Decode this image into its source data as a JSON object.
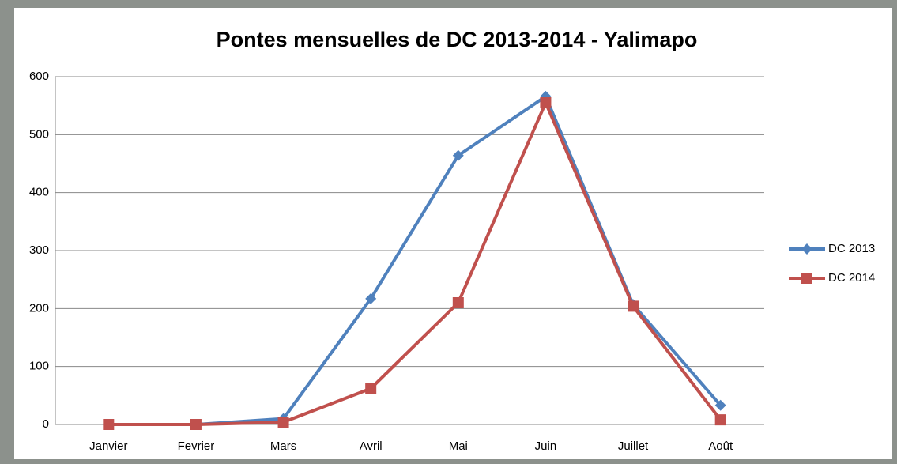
{
  "chart_data": {
    "type": "line",
    "title": "Pontes mensuelles de DC 2013-2014 - Yalimapo",
    "categories": [
      "Janvier",
      "Fevrier",
      "Mars",
      "Avril",
      "Mai",
      "Juin",
      "Juillet",
      "Août"
    ],
    "series": [
      {
        "name": "DC 2013",
        "color": "#4f81bd",
        "marker": "diamond",
        "values": [
          0,
          0,
          10,
          217,
          464,
          566,
          207,
          33
        ]
      },
      {
        "name": "DC 2014",
        "color": "#c0504d",
        "marker": "square",
        "values": [
          0,
          0,
          4,
          62,
          210,
          555,
          204,
          8
        ]
      }
    ],
    "ylim": [
      0,
      600
    ],
    "yticks": [
      0,
      100,
      200,
      300,
      400,
      500,
      600
    ],
    "grid": true,
    "legend": "right"
  }
}
